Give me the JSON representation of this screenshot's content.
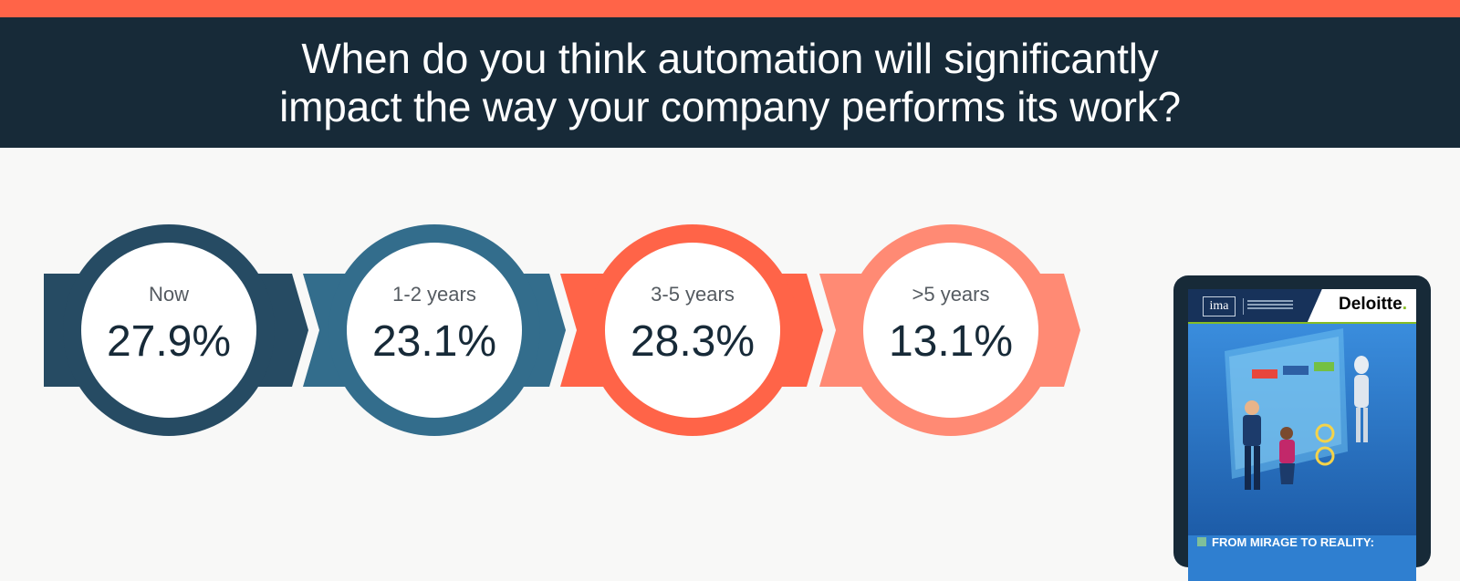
{
  "header": {
    "title_line1": "When do you think automation will significantly",
    "title_line2": "impact the way your company performs its work?"
  },
  "chart_data": {
    "type": "bar",
    "categories": [
      "Now",
      "1-2 years",
      "3-5 years",
      ">5 years"
    ],
    "values": [
      27.9,
      23.1,
      28.3,
      13.1
    ],
    "value_labels": [
      "27.9%",
      "23.1%",
      "28.3%",
      "13.1%"
    ],
    "colors": [
      "#264b63",
      "#336d8c",
      "#ff6448",
      "#ff8a74"
    ]
  },
  "report": {
    "brand": "Deloitte",
    "brand_dot": ".",
    "partner_logo": "ima",
    "cover_title": "FROM MIRAGE TO REALITY:"
  },
  "theme": {
    "accent": "#ff6448",
    "navy": "#172a38",
    "background": "#f8f8f7"
  }
}
